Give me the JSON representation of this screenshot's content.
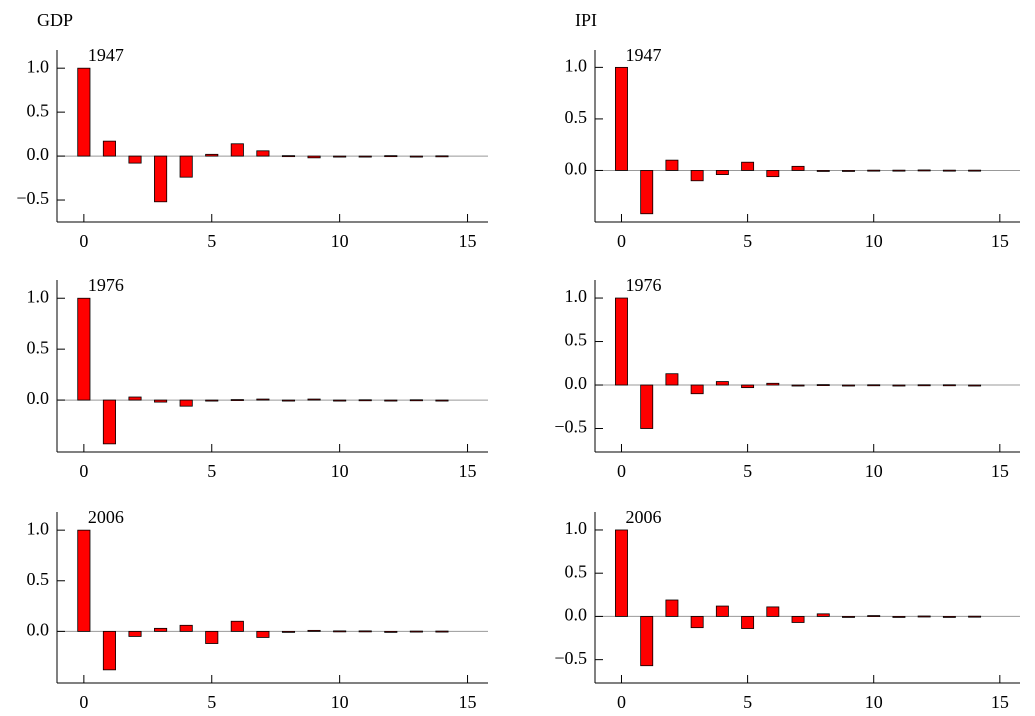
{
  "chart_data": [
    {
      "type": "bar",
      "title": "GDP",
      "annotation": "1947",
      "color": "#ff0000",
      "x": [
        0,
        1,
        2,
        3,
        4,
        5,
        6,
        7,
        8,
        9,
        10,
        11,
        12,
        13,
        14
      ],
      "values": [
        1.0,
        0.17,
        -0.08,
        -0.52,
        -0.24,
        0.02,
        0.14,
        0.06,
        0.005,
        -0.02,
        -0.01,
        -0.005,
        0.005,
        -0.005,
        0.003
      ],
      "xlim": [
        -1.05,
        15.8
      ],
      "xticks": [
        0,
        5,
        10,
        15
      ],
      "ylim": [
        -0.75,
        1.15
      ],
      "yticks": [
        {
          "value": -0.5,
          "label": "−0.5"
        },
        {
          "value": 0,
          "label": "0.0"
        },
        0.5,
        {
          "value": 1,
          "label": "1.0"
        }
      ]
    },
    {
      "type": "bar",
      "title": "IPI",
      "annotation": "1947",
      "color": "#ff0000",
      "x": [
        0,
        1,
        2,
        3,
        4,
        5,
        6,
        7,
        8,
        9,
        10,
        11,
        12,
        13,
        14
      ],
      "values": [
        1.0,
        -0.42,
        0.1,
        -0.1,
        -0.04,
        0.08,
        -0.06,
        0.04,
        -0.005,
        -0.005,
        0.003,
        0.003,
        0.005,
        0.003,
        0.003
      ],
      "xlim": [
        -1.05,
        15.8
      ],
      "xticks": [
        0,
        5,
        10,
        15
      ],
      "ylim": [
        -0.5,
        1.12
      ],
      "yticks": [
        {
          "value": 0,
          "label": "0.0"
        },
        0.5,
        {
          "value": 1,
          "label": "1.0"
        }
      ]
    },
    {
      "type": "bar",
      "annotation": "1976",
      "color": "#ff0000",
      "x": [
        0,
        1,
        2,
        3,
        4,
        5,
        6,
        7,
        8,
        9,
        10,
        11,
        12,
        13,
        14
      ],
      "values": [
        1.0,
        -0.43,
        0.03,
        -0.02,
        -0.06,
        -0.01,
        0.005,
        0.01,
        -0.005,
        0.01,
        -0.005,
        0.003,
        -0.003,
        0.003,
        -0.003
      ],
      "xlim": [
        -1.05,
        15.8
      ],
      "xticks": [
        0,
        5,
        10,
        15
      ],
      "ylim": [
        -0.51,
        1.13
      ],
      "yticks": [
        {
          "value": 0,
          "label": "0.0"
        },
        0.5,
        {
          "value": 1,
          "label": "1.0"
        }
      ]
    },
    {
      "type": "bar",
      "annotation": "1976",
      "color": "#ff0000",
      "x": [
        0,
        1,
        2,
        3,
        4,
        5,
        6,
        7,
        8,
        9,
        10,
        11,
        12,
        13,
        14
      ],
      "values": [
        1.0,
        -0.5,
        0.13,
        -0.1,
        0.04,
        -0.03,
        0.02,
        -0.01,
        0.005,
        -0.003,
        0.003,
        -0.003,
        0.003,
        0.003,
        -0.003
      ],
      "xlim": [
        -1.05,
        15.8
      ],
      "xticks": [
        0,
        5,
        10,
        15
      ],
      "ylim": [
        -0.77,
        1.15
      ],
      "yticks": [
        {
          "value": -0.5,
          "label": "−0.5"
        },
        {
          "value": 0,
          "label": "0.0"
        },
        0.5,
        {
          "value": 1,
          "label": "1.0"
        }
      ]
    },
    {
      "type": "bar",
      "annotation": "2006",
      "color": "#ff0000",
      "x": [
        0,
        1,
        2,
        3,
        4,
        5,
        6,
        7,
        8,
        9,
        10,
        11,
        12,
        13,
        14
      ],
      "values": [
        1.0,
        -0.38,
        -0.05,
        0.03,
        0.06,
        -0.12,
        0.1,
        -0.06,
        -0.005,
        0.01,
        0.005,
        0.005,
        -0.003,
        0.003,
        0.003
      ],
      "xlim": [
        -1.05,
        15.8
      ],
      "xticks": [
        0,
        5,
        10,
        15
      ],
      "ylim": [
        -0.51,
        1.13
      ],
      "yticks": [
        {
          "value": 0,
          "label": "0.0"
        },
        0.5,
        {
          "value": 1,
          "label": "1.0"
        }
      ]
    },
    {
      "type": "bar",
      "annotation": "2006",
      "color": "#ff0000",
      "x": [
        0,
        1,
        2,
        3,
        4,
        5,
        6,
        7,
        8,
        9,
        10,
        11,
        12,
        13,
        14
      ],
      "values": [
        1.0,
        -0.57,
        0.19,
        -0.13,
        0.12,
        -0.14,
        0.11,
        -0.07,
        0.03,
        -0.01,
        0.01,
        -0.01,
        0.005,
        -0.003,
        0.003
      ],
      "xlim": [
        -1.05,
        15.8
      ],
      "xticks": [
        0,
        5,
        10,
        15
      ],
      "ylim": [
        -0.77,
        1.15
      ],
      "yticks": [
        {
          "value": -0.5,
          "label": "−0.5"
        },
        {
          "value": 0,
          "label": "0.0"
        },
        0.5,
        {
          "value": 1,
          "label": "1.0"
        }
      ]
    }
  ]
}
